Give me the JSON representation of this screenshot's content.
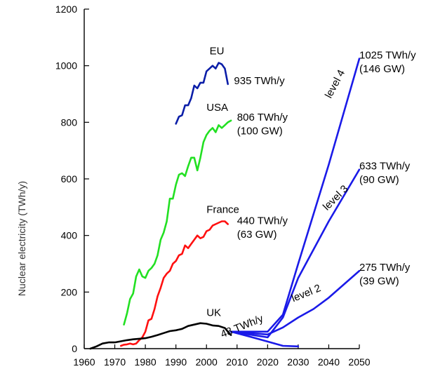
{
  "chart_data": {
    "type": "line",
    "xlabel": "",
    "ylabel": "Nuclear electricity (TWh/y)",
    "xlim": [
      1960,
      2050
    ],
    "ylim": [
      0,
      1200
    ],
    "xticks": [
      1960,
      1970,
      1980,
      1990,
      2000,
      2010,
      2020,
      2030,
      2040,
      2050
    ],
    "yticks": [
      0,
      200,
      400,
      600,
      800,
      1000,
      1200
    ],
    "grid": false,
    "series": [
      {
        "name": "EU",
        "color": "#0b1ea8",
        "x": [
          1990,
          1991,
          1992,
          1993,
          1994,
          1995,
          1996,
          1997,
          1998,
          1999,
          2000,
          2001,
          2002,
          2003,
          2004,
          2005,
          2006,
          2007
        ],
        "y": [
          795,
          820,
          825,
          860,
          860,
          885,
          930,
          920,
          940,
          940,
          980,
          990,
          1000,
          990,
          1010,
          1005,
          990,
          935
        ]
      },
      {
        "name": "USA",
        "color": "#22e022",
        "x": [
          1973,
          1974,
          1975,
          1976,
          1977,
          1978,
          1979,
          1980,
          1981,
          1982,
          1983,
          1984,
          1985,
          1986,
          1987,
          1988,
          1989,
          1990,
          1991,
          1992,
          1993,
          1994,
          1995,
          1996,
          1997,
          1998,
          1999,
          2000,
          2001,
          2002,
          2003,
          2004,
          2005,
          2006,
          2007,
          2008
        ],
        "y": [
          85,
          125,
          175,
          195,
          255,
          280,
          255,
          250,
          275,
          285,
          300,
          330,
          385,
          410,
          450,
          530,
          530,
          580,
          615,
          620,
          610,
          645,
          675,
          675,
          630,
          675,
          730,
          755,
          770,
          780,
          765,
          790,
          780,
          790,
          800,
          806
        ]
      },
      {
        "name": "France",
        "color": "#ff1010",
        "x": [
          1972,
          1973,
          1974,
          1975,
          1976,
          1977,
          1978,
          1979,
          1980,
          1981,
          1982,
          1983,
          1984,
          1985,
          1986,
          1987,
          1988,
          1989,
          1990,
          1991,
          1992,
          1993,
          1994,
          1995,
          1996,
          1997,
          1998,
          1999,
          2000,
          2001,
          2002,
          2003,
          2004,
          2005,
          2006,
          2007
        ],
        "y": [
          10,
          14,
          15,
          18,
          15,
          18,
          30,
          40,
          60,
          100,
          105,
          140,
          185,
          215,
          250,
          265,
          275,
          300,
          310,
          330,
          335,
          365,
          355,
          370,
          385,
          400,
          390,
          395,
          415,
          420,
          435,
          440,
          445,
          450,
          450,
          440
        ]
      },
      {
        "name": "UK",
        "color": "#000000",
        "x": [
          1962,
          1964,
          1966,
          1968,
          1970,
          1972,
          1974,
          1976,
          1978,
          1980,
          1982,
          1984,
          1986,
          1988,
          1990,
          1992,
          1994,
          1996,
          1998,
          2000,
          2002,
          2004,
          2006,
          2007,
          2008
        ],
        "y": [
          0,
          8,
          18,
          22,
          22,
          26,
          30,
          33,
          35,
          37,
          42,
          48,
          55,
          62,
          65,
          70,
          80,
          85,
          90,
          88,
          82,
          80,
          73,
          60,
          48
        ]
      },
      {
        "name": "level 4",
        "color": "#1a1ae8",
        "x": [
          2008,
          2020,
          2025,
          2030,
          2040,
          2050
        ],
        "y": [
          60,
          60,
          120,
          300,
          650,
          1025
        ]
      },
      {
        "name": "level 3",
        "color": "#1a1ae8",
        "x": [
          2008,
          2020,
          2025,
          2030,
          2040,
          2050
        ],
        "y": [
          60,
          40,
          110,
          250,
          450,
          633
        ]
      },
      {
        "name": "level 2",
        "color": "#1a1ae8",
        "x": [
          2008,
          2020,
          2025,
          2030,
          2035,
          2040,
          2050
        ],
        "y": [
          60,
          50,
          75,
          110,
          140,
          180,
          275
        ]
      },
      {
        "name": "",
        "color": "#1a1ae8",
        "x": [
          2008,
          2015,
          2020,
          2025,
          2030
        ],
        "y": [
          60,
          40,
          25,
          10,
          8
        ]
      }
    ],
    "annotations": [
      {
        "id": "eu",
        "x": 2001,
        "y": 1040,
        "text": "EU",
        "anchor": "start"
      },
      {
        "id": "eu-value",
        "x": 2009,
        "y": 935,
        "text": "935 TWh/y",
        "anchor": "start"
      },
      {
        "id": "usa",
        "x": 2000,
        "y": 840,
        "text": "USA",
        "anchor": "start"
      },
      {
        "id": "usa-value",
        "x": 2010,
        "y": 806,
        "text": "806 TWh/y",
        "anchor": "start"
      },
      {
        "id": "usa-gw",
        "x": 2010,
        "y": 757,
        "text": "(100 GW)",
        "anchor": "start"
      },
      {
        "id": "france",
        "x": 2000,
        "y": 480,
        "text": "France",
        "anchor": "start"
      },
      {
        "id": "france-value",
        "x": 2010,
        "y": 440,
        "text": "440 TWh/y",
        "anchor": "start"
      },
      {
        "id": "france-gw",
        "x": 2010,
        "y": 392,
        "text": "(63 GW)",
        "anchor": "start"
      },
      {
        "id": "uk",
        "x": 2000,
        "y": 115,
        "text": "UK",
        "anchor": "start"
      },
      {
        "id": "level4-value",
        "x": 2050,
        "y": 1025,
        "text": "1025 TWh/y",
        "anchor": "start"
      },
      {
        "id": "level4-gw",
        "x": 2050,
        "y": 977,
        "text": "(146 GW)",
        "anchor": "start"
      },
      {
        "id": "level3-value",
        "x": 2050,
        "y": 633,
        "text": "633 TWh/y",
        "anchor": "start"
      },
      {
        "id": "level3-gw",
        "x": 2050,
        "y": 585,
        "text": "(90 GW)",
        "anchor": "start"
      },
      {
        "id": "level2-value",
        "x": 2050,
        "y": 275,
        "text": "275 TWh/y",
        "anchor": "start"
      },
      {
        "id": "level2-gw",
        "x": 2050,
        "y": 227,
        "text": "(39 GW)",
        "anchor": "start"
      }
    ],
    "rotated_annotations": [
      {
        "id": "level4-label",
        "x": 2043,
        "y": 930,
        "text": "level 4",
        "angle": -62
      },
      {
        "id": "level3-label",
        "x": 2043,
        "y": 525,
        "text": "level 3",
        "angle": -45
      },
      {
        "id": "level2-label",
        "x": 2033,
        "y": 185,
        "text": "level 2",
        "angle": -22
      },
      {
        "id": "uk-value",
        "x": 2012,
        "y": 68,
        "text": "48 TWh/y",
        "angle": -22
      }
    ]
  }
}
